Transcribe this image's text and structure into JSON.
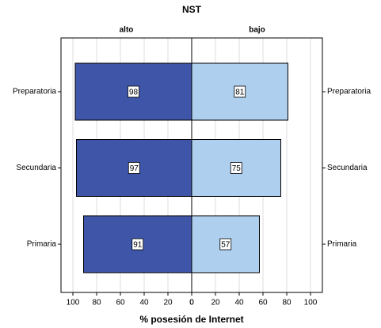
{
  "chart_data": {
    "type": "pyramid",
    "title": "NST",
    "categories": [
      "Preparatoria",
      "Secundaria",
      "Primaria"
    ],
    "series": [
      {
        "name": "alto",
        "color": "#3f56a8",
        "values": [
          98,
          97,
          91
        ]
      },
      {
        "name": "bajo",
        "color": "#aed0ee",
        "values": [
          81,
          75,
          57
        ]
      }
    ],
    "xlabel": "% posesión de Internet",
    "xlim": [
      0,
      110
    ],
    "xticks": [
      0,
      20,
      40,
      60,
      80,
      100
    ],
    "grid": true
  }
}
